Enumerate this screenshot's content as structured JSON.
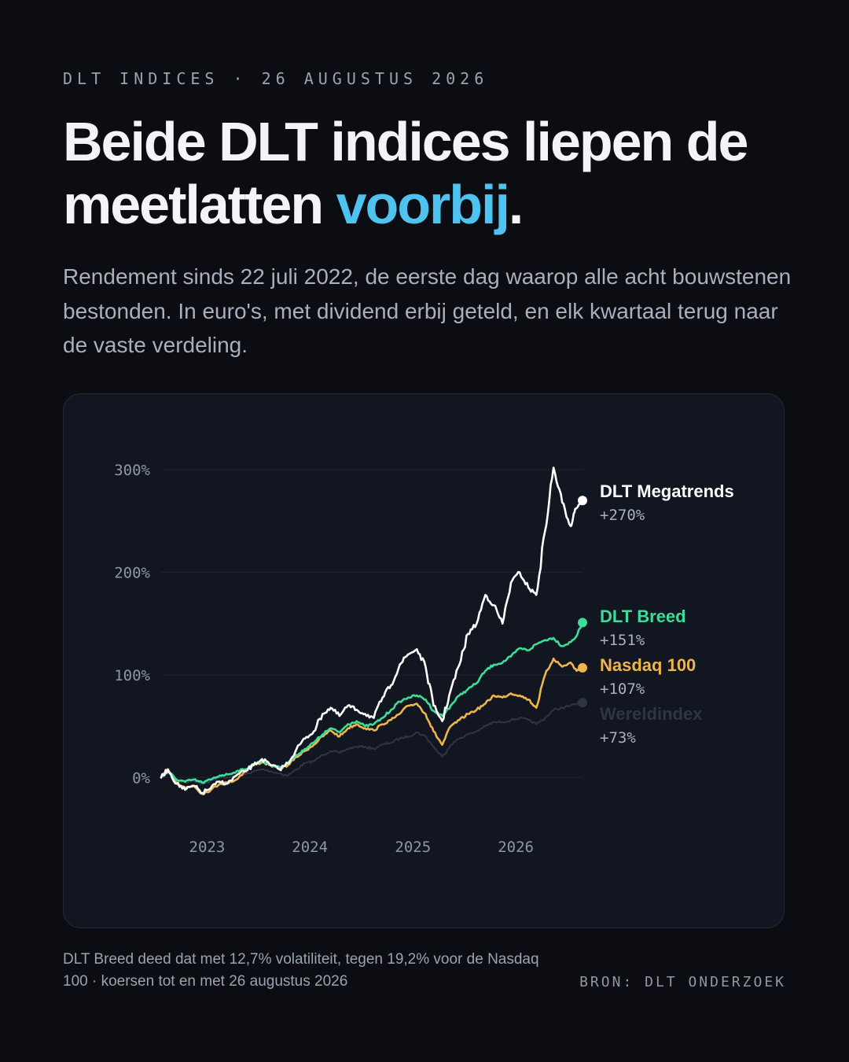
{
  "header": {
    "kicker": "DLT INDICES · 26 AUGUSTUS 2026",
    "headline_main": "Beide DLT indices liepen de meetlatten ",
    "headline_accent": "voorbij",
    "headline_end": ".",
    "subtitle": "Rendement sinds 22 juli 2022, de eerste dag waarop alle acht bouwstenen bestonden. In euro's, met dividend erbij geteld, en elk kwartaal terug naar de vaste verdeling."
  },
  "colors": {
    "background": "#0b0d12",
    "card": "#111620",
    "accent": "#4fc3f0",
    "megatrends": "#ffffff",
    "breed": "#3ddc97",
    "nasdaq": "#f0b54a",
    "wereld": "#2f3545"
  },
  "chart_data": {
    "type": "line",
    "x_unit": "date",
    "y_unit": "%",
    "xlim": [
      "2022-07-22",
      "2026-08-26"
    ],
    "ylim": [
      -25,
      320
    ],
    "y_ticks": [
      0,
      100,
      200,
      300
    ],
    "y_tick_labels": [
      "0%",
      "100%",
      "200%",
      "300%"
    ],
    "x_ticks": [
      "2023-01-01",
      "2024-01-01",
      "2025-01-01",
      "2026-01-01"
    ],
    "x_tick_labels": [
      "2023",
      "2024",
      "2025",
      "2026"
    ],
    "grid": true,
    "legend": "end-labels",
    "series": [
      {
        "name": "DLT Megatrends",
        "end_label": "+270%",
        "color_key": "megatrends",
        "points": [
          [
            "2022-07-22",
            0
          ],
          [
            "2022-08-15",
            8
          ],
          [
            "2022-09-15",
            -6
          ],
          [
            "2022-10-15",
            -12
          ],
          [
            "2022-11-15",
            -8
          ],
          [
            "2022-12-15",
            -15
          ],
          [
            "2023-01-15",
            -10
          ],
          [
            "2023-02-15",
            -4
          ],
          [
            "2023-03-15",
            -6
          ],
          [
            "2023-04-15",
            2
          ],
          [
            "2023-05-15",
            6
          ],
          [
            "2023-06-15",
            12
          ],
          [
            "2023-07-15",
            18
          ],
          [
            "2023-08-15",
            12
          ],
          [
            "2023-09-15",
            8
          ],
          [
            "2023-10-15",
            14
          ],
          [
            "2023-11-15",
            28
          ],
          [
            "2023-12-15",
            38
          ],
          [
            "2024-01-15",
            45
          ],
          [
            "2024-02-15",
            62
          ],
          [
            "2024-03-15",
            68
          ],
          [
            "2024-04-15",
            60
          ],
          [
            "2024-05-15",
            70
          ],
          [
            "2024-06-15",
            66
          ],
          [
            "2024-07-15",
            62
          ],
          [
            "2024-08-15",
            58
          ],
          [
            "2024-09-15",
            78
          ],
          [
            "2024-10-15",
            90
          ],
          [
            "2024-11-15",
            110
          ],
          [
            "2024-12-15",
            120
          ],
          [
            "2025-01-15",
            125
          ],
          [
            "2025-02-15",
            108
          ],
          [
            "2025-03-15",
            70
          ],
          [
            "2025-04-15",
            55
          ],
          [
            "2025-05-15",
            85
          ],
          [
            "2025-06-15",
            110
          ],
          [
            "2025-07-15",
            140
          ],
          [
            "2025-08-15",
            150
          ],
          [
            "2025-09-15",
            178
          ],
          [
            "2025-10-15",
            168
          ],
          [
            "2025-11-15",
            150
          ],
          [
            "2025-12-15",
            190
          ],
          [
            "2026-01-15",
            200
          ],
          [
            "2026-02-15",
            185
          ],
          [
            "2026-03-15",
            178
          ],
          [
            "2026-04-15",
            240
          ],
          [
            "2026-05-15",
            302
          ],
          [
            "2026-06-15",
            268
          ],
          [
            "2026-07-15",
            245
          ],
          [
            "2026-07-31",
            262
          ],
          [
            "2026-08-26",
            270
          ]
        ]
      },
      {
        "name": "DLT Breed",
        "end_label": "+151%",
        "color_key": "breed",
        "points": [
          [
            "2022-07-22",
            0
          ],
          [
            "2022-08-15",
            6
          ],
          [
            "2022-09-15",
            -2
          ],
          [
            "2022-10-15",
            -4
          ],
          [
            "2022-11-15",
            -2
          ],
          [
            "2022-12-15",
            -5
          ],
          [
            "2023-01-15",
            -2
          ],
          [
            "2023-02-15",
            2
          ],
          [
            "2023-03-15",
            3
          ],
          [
            "2023-04-15",
            6
          ],
          [
            "2023-05-15",
            8
          ],
          [
            "2023-06-15",
            13
          ],
          [
            "2023-07-15",
            16
          ],
          [
            "2023-08-15",
            12
          ],
          [
            "2023-09-15",
            10
          ],
          [
            "2023-10-15",
            14
          ],
          [
            "2023-11-15",
            22
          ],
          [
            "2023-12-15",
            28
          ],
          [
            "2024-01-15",
            34
          ],
          [
            "2024-02-15",
            42
          ],
          [
            "2024-03-15",
            48
          ],
          [
            "2024-04-15",
            44
          ],
          [
            "2024-05-15",
            52
          ],
          [
            "2024-06-15",
            55
          ],
          [
            "2024-07-15",
            50
          ],
          [
            "2024-08-15",
            52
          ],
          [
            "2024-09-15",
            58
          ],
          [
            "2024-10-15",
            66
          ],
          [
            "2024-11-15",
            74
          ],
          [
            "2024-12-15",
            78
          ],
          [
            "2025-01-15",
            80
          ],
          [
            "2025-02-15",
            76
          ],
          [
            "2025-03-15",
            65
          ],
          [
            "2025-04-15",
            60
          ],
          [
            "2025-05-15",
            70
          ],
          [
            "2025-06-15",
            80
          ],
          [
            "2025-07-15",
            86
          ],
          [
            "2025-08-15",
            92
          ],
          [
            "2025-09-15",
            104
          ],
          [
            "2025-10-15",
            110
          ],
          [
            "2025-11-15",
            112
          ],
          [
            "2025-12-15",
            118
          ],
          [
            "2026-01-15",
            126
          ],
          [
            "2026-02-15",
            124
          ],
          [
            "2026-03-15",
            130
          ],
          [
            "2026-04-15",
            134
          ],
          [
            "2026-05-15",
            136
          ],
          [
            "2026-06-15",
            128
          ],
          [
            "2026-07-15",
            132
          ],
          [
            "2026-08-05",
            138
          ],
          [
            "2026-08-26",
            151
          ]
        ]
      },
      {
        "name": "Nasdaq 100",
        "end_label": "+107%",
        "color_key": "nasdaq",
        "points": [
          [
            "2022-07-22",
            0
          ],
          [
            "2022-08-15",
            8
          ],
          [
            "2022-09-15",
            -5
          ],
          [
            "2022-10-15",
            -10
          ],
          [
            "2022-11-15",
            -8
          ],
          [
            "2022-12-15",
            -16
          ],
          [
            "2023-01-15",
            -12
          ],
          [
            "2023-02-15",
            -6
          ],
          [
            "2023-03-15",
            -5
          ],
          [
            "2023-04-15",
            -2
          ],
          [
            "2023-05-15",
            6
          ],
          [
            "2023-06-15",
            12
          ],
          [
            "2023-07-15",
            15
          ],
          [
            "2023-08-15",
            12
          ],
          [
            "2023-09-15",
            9
          ],
          [
            "2023-10-15",
            12
          ],
          [
            "2023-11-15",
            20
          ],
          [
            "2023-12-15",
            26
          ],
          [
            "2024-01-15",
            32
          ],
          [
            "2024-02-15",
            40
          ],
          [
            "2024-03-15",
            46
          ],
          [
            "2024-04-15",
            40
          ],
          [
            "2024-05-15",
            48
          ],
          [
            "2024-06-15",
            52
          ],
          [
            "2024-07-15",
            48
          ],
          [
            "2024-08-15",
            46
          ],
          [
            "2024-09-15",
            52
          ],
          [
            "2024-10-15",
            56
          ],
          [
            "2024-11-15",
            62
          ],
          [
            "2024-12-15",
            70
          ],
          [
            "2025-01-15",
            72
          ],
          [
            "2025-02-15",
            62
          ],
          [
            "2025-03-15",
            45
          ],
          [
            "2025-04-15",
            32
          ],
          [
            "2025-05-15",
            50
          ],
          [
            "2025-06-15",
            56
          ],
          [
            "2025-07-15",
            62
          ],
          [
            "2025-08-15",
            66
          ],
          [
            "2025-09-15",
            72
          ],
          [
            "2025-10-15",
            80
          ],
          [
            "2025-11-15",
            78
          ],
          [
            "2025-12-15",
            82
          ],
          [
            "2026-01-15",
            80
          ],
          [
            "2026-02-15",
            76
          ],
          [
            "2026-03-15",
            68
          ],
          [
            "2026-04-15",
            100
          ],
          [
            "2026-05-15",
            116
          ],
          [
            "2026-06-15",
            108
          ],
          [
            "2026-07-15",
            112
          ],
          [
            "2026-08-05",
            104
          ],
          [
            "2026-08-26",
            107
          ]
        ]
      },
      {
        "name": "Wereldindex",
        "end_label": "+73%",
        "color_key": "wereld",
        "points": [
          [
            "2022-07-22",
            0
          ],
          [
            "2022-08-15",
            5
          ],
          [
            "2022-09-15",
            -3
          ],
          [
            "2022-10-15",
            -5
          ],
          [
            "2022-11-15",
            -3
          ],
          [
            "2022-12-15",
            -6
          ],
          [
            "2023-01-15",
            -3
          ],
          [
            "2023-02-15",
            0
          ],
          [
            "2023-03-15",
            0
          ],
          [
            "2023-04-15",
            2
          ],
          [
            "2023-05-15",
            3
          ],
          [
            "2023-06-15",
            6
          ],
          [
            "2023-07-15",
            8
          ],
          [
            "2023-08-15",
            6
          ],
          [
            "2023-09-15",
            4
          ],
          [
            "2023-10-15",
            2
          ],
          [
            "2023-11-15",
            8
          ],
          [
            "2023-12-15",
            14
          ],
          [
            "2024-01-15",
            16
          ],
          [
            "2024-02-15",
            22
          ],
          [
            "2024-03-15",
            26
          ],
          [
            "2024-04-15",
            24
          ],
          [
            "2024-05-15",
            28
          ],
          [
            "2024-06-15",
            30
          ],
          [
            "2024-07-15",
            30
          ],
          [
            "2024-08-15",
            28
          ],
          [
            "2024-09-15",
            32
          ],
          [
            "2024-10-15",
            34
          ],
          [
            "2024-11-15",
            38
          ],
          [
            "2024-12-15",
            40
          ],
          [
            "2025-01-15",
            44
          ],
          [
            "2025-02-15",
            40
          ],
          [
            "2025-03-15",
            30
          ],
          [
            "2025-04-15",
            20
          ],
          [
            "2025-05-15",
            32
          ],
          [
            "2025-06-15",
            38
          ],
          [
            "2025-07-15",
            42
          ],
          [
            "2025-08-15",
            45
          ],
          [
            "2025-09-15",
            50
          ],
          [
            "2025-10-15",
            54
          ],
          [
            "2025-11-15",
            54
          ],
          [
            "2025-12-15",
            56
          ],
          [
            "2026-01-15",
            58
          ],
          [
            "2026-02-15",
            56
          ],
          [
            "2026-03-15",
            52
          ],
          [
            "2026-04-15",
            58
          ],
          [
            "2026-05-15",
            66
          ],
          [
            "2026-06-15",
            68
          ],
          [
            "2026-07-15",
            70
          ],
          [
            "2026-08-05",
            72
          ],
          [
            "2026-08-26",
            73
          ]
        ]
      }
    ]
  },
  "footer": {
    "footnote": "DLT Breed deed dat met 12,7% volatiliteit, tegen 19,2% voor de Nasdaq 100 · koersen tot en met 26 augustus 2026",
    "source": "BRON: DLT ONDERZOEK"
  }
}
